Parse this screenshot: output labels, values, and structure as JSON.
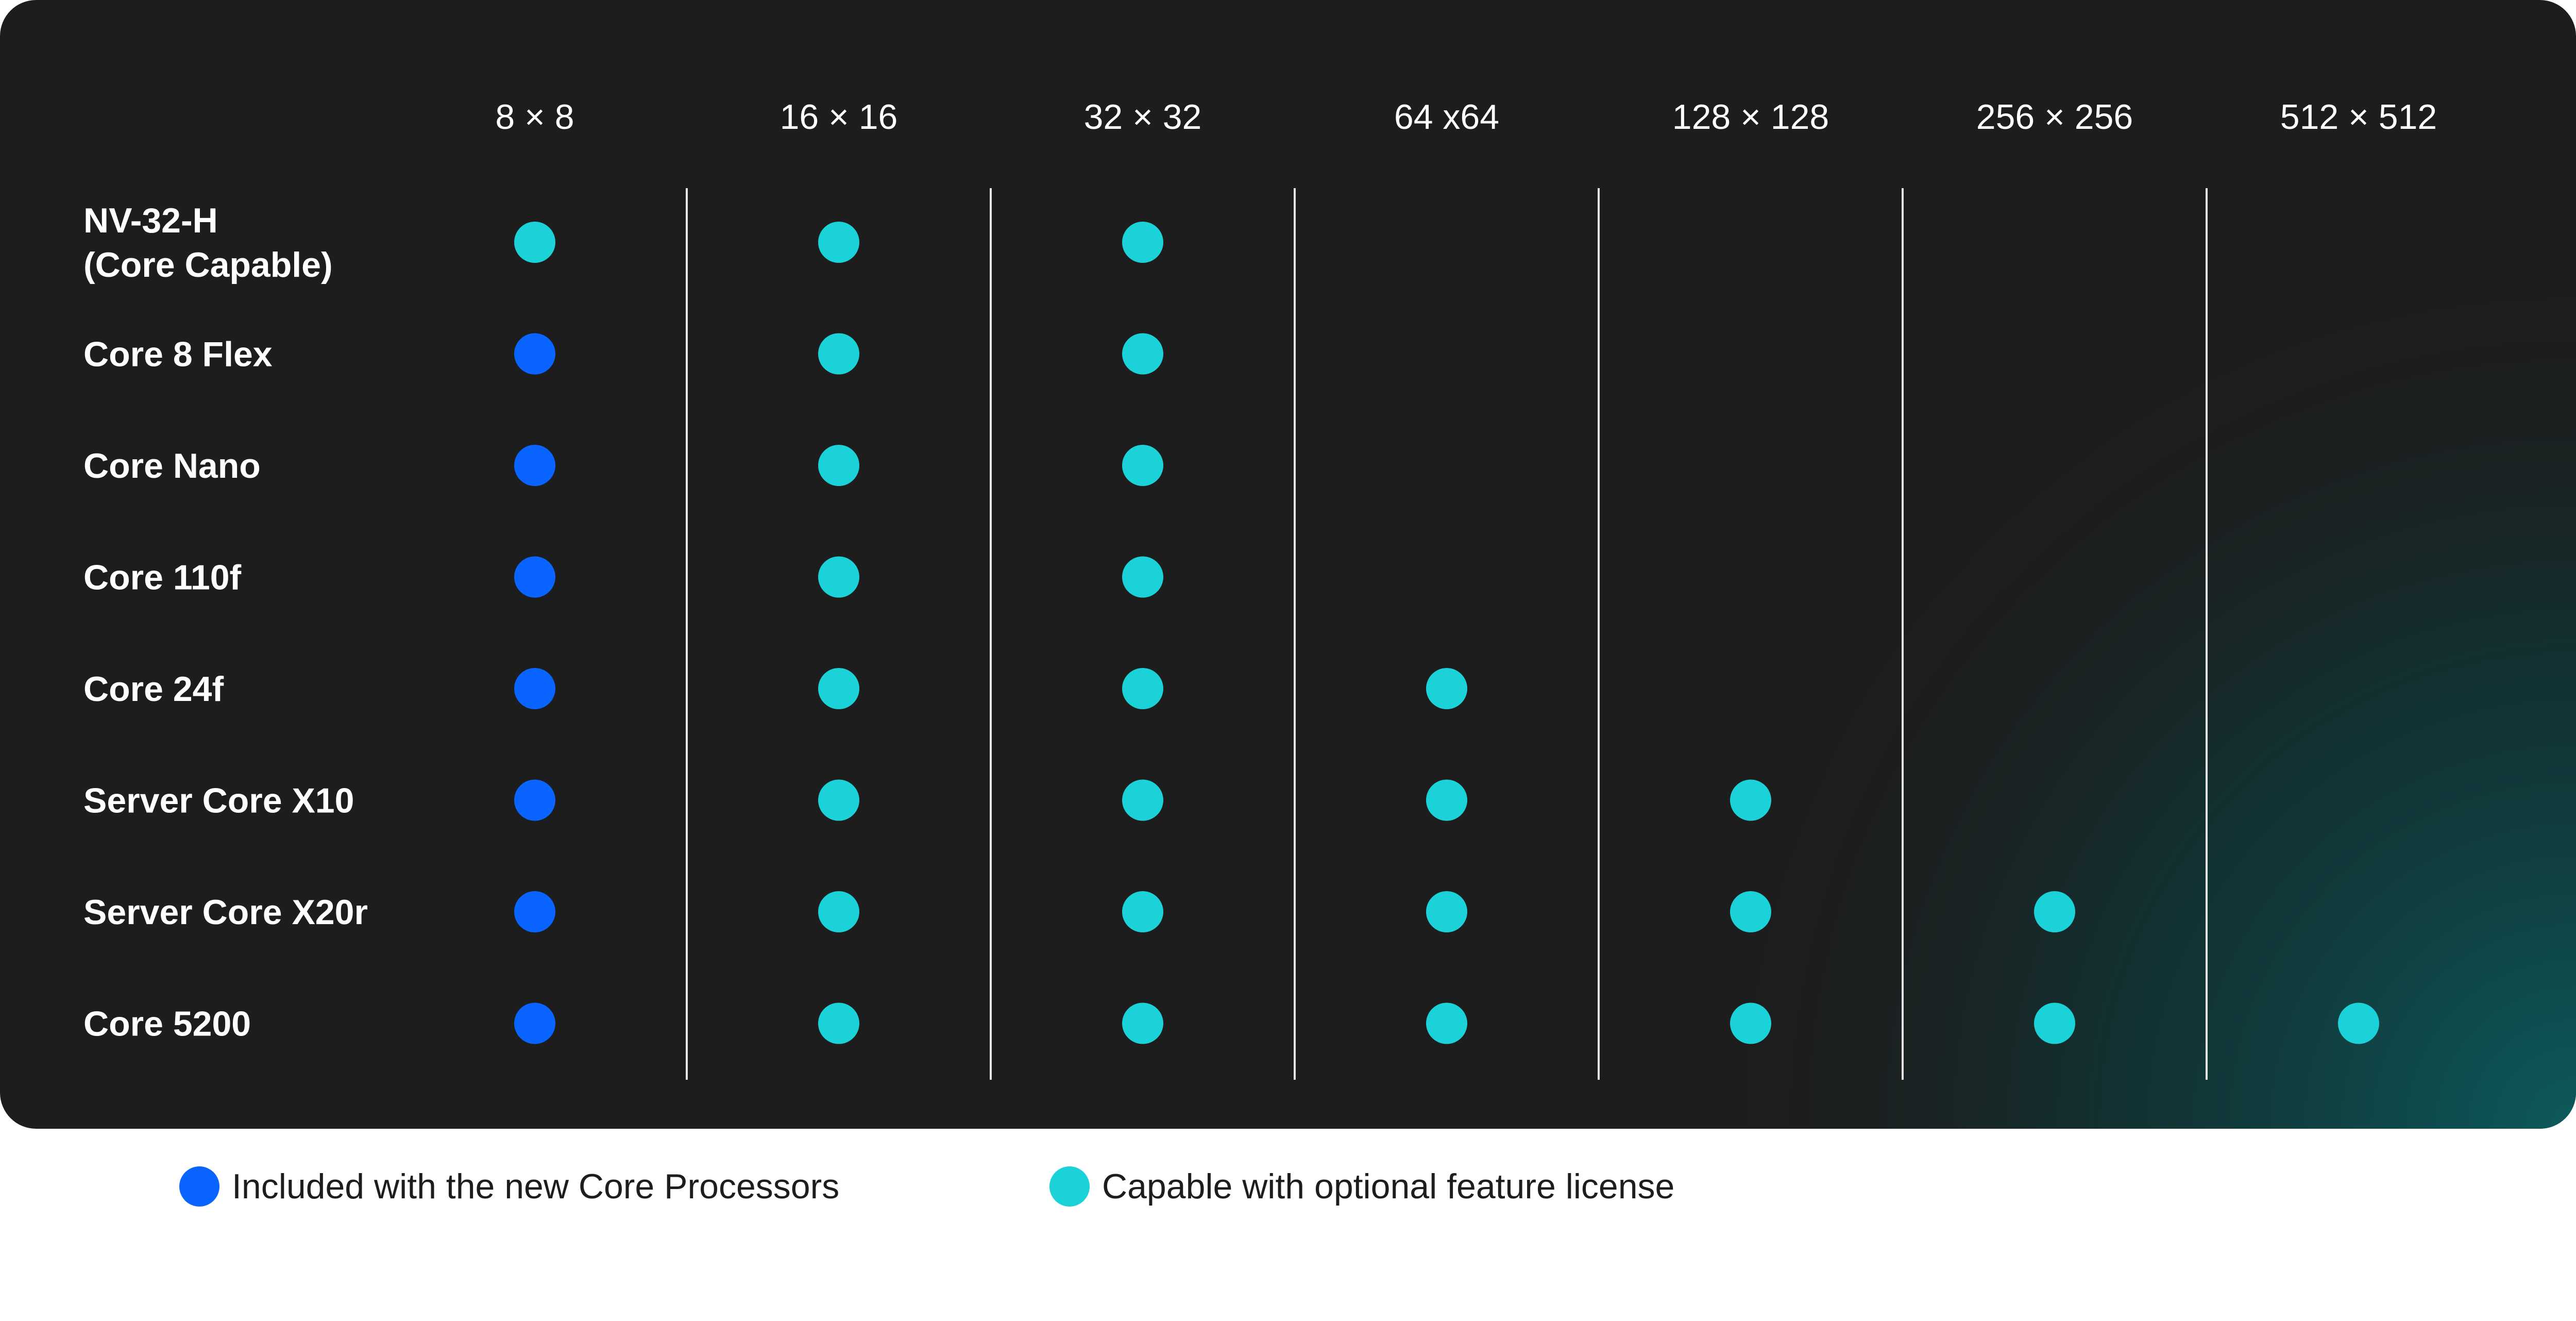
{
  "chart_data": {
    "type": "table",
    "columns": [
      "8 × 8",
      "16 × 16",
      "32 × 32",
      "64 x64",
      "128 × 128",
      "256 × 256",
      "512 × 512"
    ],
    "rows": [
      {
        "label_lines": [
          "NV-32-H",
          "(Core Capable)"
        ],
        "cells": [
          "optional",
          "optional",
          "optional",
          "",
          "",
          "",
          ""
        ]
      },
      {
        "label_lines": [
          "Core 8 Flex"
        ],
        "cells": [
          "included",
          "optional",
          "optional",
          "",
          "",
          "",
          ""
        ]
      },
      {
        "label_lines": [
          "Core Nano"
        ],
        "cells": [
          "included",
          "optional",
          "optional",
          "",
          "",
          "",
          ""
        ]
      },
      {
        "label_lines": [
          "Core 110f"
        ],
        "cells": [
          "included",
          "optional",
          "optional",
          "",
          "",
          "",
          ""
        ]
      },
      {
        "label_lines": [
          "Core 24f"
        ],
        "cells": [
          "included",
          "optional",
          "optional",
          "optional",
          "",
          "",
          ""
        ]
      },
      {
        "label_lines": [
          "Server Core X10"
        ],
        "cells": [
          "included",
          "optional",
          "optional",
          "optional",
          "optional",
          "",
          ""
        ]
      },
      {
        "label_lines": [
          "Server Core X20r"
        ],
        "cells": [
          "included",
          "optional",
          "optional",
          "optional",
          "optional",
          "optional",
          ""
        ]
      },
      {
        "label_lines": [
          "Core 5200"
        ],
        "cells": [
          "included",
          "optional",
          "optional",
          "optional",
          "optional",
          "optional",
          "optional"
        ]
      }
    ],
    "legend": [
      {
        "key": "included",
        "label": "Included with the new Core Processors",
        "color": "#0a64ff"
      },
      {
        "key": "optional",
        "label": "Capable with optional feature license",
        "color": "#1ad2d8"
      }
    ],
    "legend_placement": "bottom",
    "grid": "vertical column dividers"
  },
  "colors": {
    "panel_background": "#1d1d1d",
    "panel_glow": "#0d5a5c",
    "divider": "#e6e6e6",
    "text": "#ffffff"
  }
}
